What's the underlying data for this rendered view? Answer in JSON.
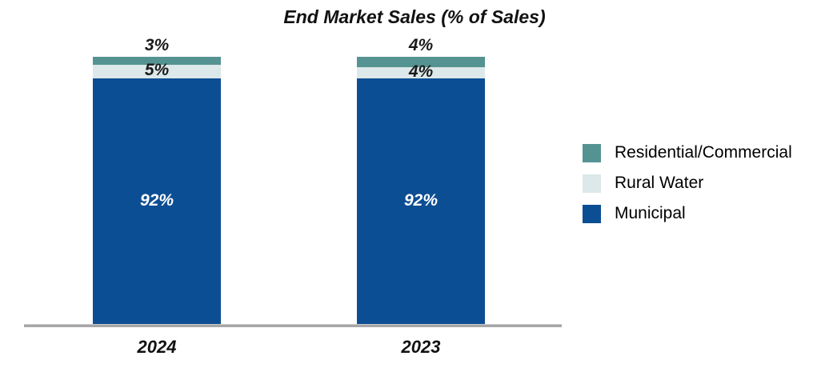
{
  "chart_data": {
    "type": "bar",
    "stacked": true,
    "title": "End Market Sales (% of Sales)",
    "categories": [
      "2024",
      "2023"
    ],
    "series": [
      {
        "name": "Municipal",
        "values": [
          92,
          92
        ],
        "color": "#0C4E93",
        "label_color": "#FFFFFF"
      },
      {
        "name": "Rural Water",
        "values": [
          5,
          4
        ],
        "color": "#DCE8E9",
        "label_color": "#1A1A1A"
      },
      {
        "name": "Residential/Commercial",
        "values": [
          3,
          4
        ],
        "color": "#559392",
        "label_color": "#1A1A1A"
      }
    ],
    "value_label_format": "{value}%",
    "xlabel": "",
    "ylabel": "",
    "ylim": [
      0,
      100
    ],
    "grid": false,
    "legend_position": "right",
    "axis_color": "#A6A6A6"
  }
}
